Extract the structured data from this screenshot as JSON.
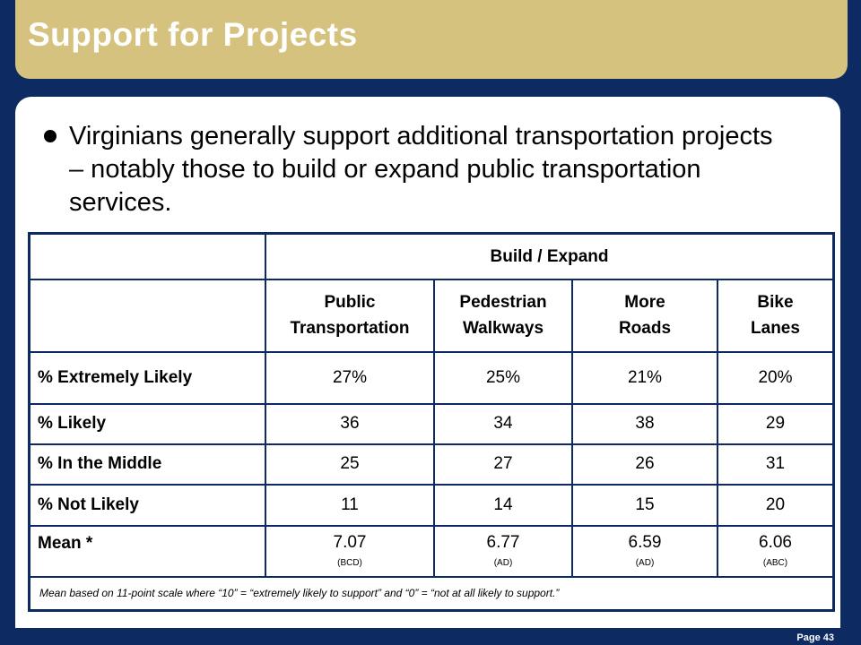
{
  "title": "Support for Projects",
  "bullet": "Virginians generally support additional transportation projects – notably those to build or expand public transportation services.",
  "table": {
    "group_header": "Build / Expand",
    "columns": [
      {
        "line1": "Public",
        "line2": "Transportation"
      },
      {
        "line1": "Pedestrian",
        "line2": "Walkways"
      },
      {
        "line1": "More",
        "line2": "Roads"
      },
      {
        "line1": "Bike",
        "line2": "Lanes"
      }
    ],
    "rows": [
      {
        "label": "% Extremely Likely",
        "values": [
          "27%",
          "25%",
          "21%",
          "20%"
        ]
      },
      {
        "label": "% Likely",
        "values": [
          "36",
          "34",
          "38",
          "29"
        ]
      },
      {
        "label": "% In the Middle",
        "values": [
          "25",
          "27",
          "26",
          "31"
        ]
      },
      {
        "label": "% Not Likely",
        "values": [
          "11",
          "14",
          "15",
          "20"
        ]
      },
      {
        "label": "Mean *",
        "values": [
          "7.07",
          "6.77",
          "6.59",
          "6.06"
        ],
        "sub": [
          "(BCD)",
          "(AD)",
          "(AD)",
          "(ABC)"
        ]
      }
    ],
    "note": "Mean based on 11-point scale where “10” = “extremely likely to support” and “0” = “not at all likely to support.”"
  },
  "page_number": "Page 43"
}
